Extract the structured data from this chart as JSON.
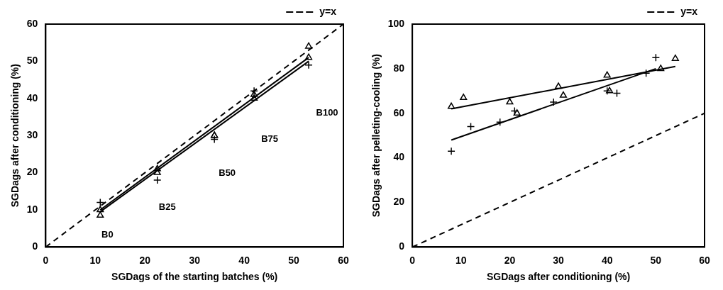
{
  "chart_data": [
    {
      "type": "scatter",
      "xlabel": "SGDags of the starting batches (%)",
      "ylabel": "SGDags after conditioning (%)",
      "xlim": [
        0,
        60
      ],
      "ylim": [
        0,
        60
      ],
      "xticks": [
        0,
        10,
        20,
        30,
        40,
        50,
        60
      ],
      "yticks": [
        0,
        10,
        20,
        30,
        40,
        50,
        60
      ],
      "grid": false,
      "legend": "top right",
      "series": [
        {
          "color": "#000000",
          "marker": "cross",
          "x": [
            11,
            22.5,
            34,
            42,
            53
          ],
          "values": [
            12,
            18,
            29,
            42,
            49
          ]
        },
        {
          "color": "#000000",
          "marker": "triangle",
          "x": [
            11,
            22.5,
            34,
            42,
            53
          ],
          "values": [
            10,
            20,
            30,
            41,
            54
          ]
        },
        {
          "color": "#000000",
          "marker": "triangle",
          "x": [
            11,
            22.5,
            34,
            42,
            53
          ],
          "values": [
            8.5,
            21,
            30,
            40,
            51
          ]
        },
        {
          "type": "line",
          "color": "#000000",
          "marker": "none",
          "x": [
            11,
            53
          ],
          "values": [
            10,
            51
          ]
        },
        {
          "type": "line",
          "color": "#000000",
          "marker": "none",
          "x": [
            11,
            53
          ],
          "values": [
            9.5,
            50
          ]
        },
        {
          "type": "line",
          "name": "y=x",
          "color": "#000000",
          "marker": "none",
          "line_style": "dashed",
          "x": [
            0,
            60
          ],
          "values": [
            0,
            60
          ]
        }
      ],
      "annotations": [
        "B0",
        "B25",
        "B50",
        "B75",
        "B100"
      ]
    },
    {
      "type": "scatter",
      "xlabel": "SGDags after conditioning (%)",
      "ylabel": "SGDags after pelleting-cooling (%)",
      "xlim": [
        0,
        60
      ],
      "ylim": [
        0,
        100
      ],
      "xticks": [
        0,
        10,
        20,
        30,
        40,
        50,
        60
      ],
      "yticks": [
        0,
        20,
        40,
        60,
        80,
        100
      ],
      "grid": false,
      "legend": "top right",
      "series": [
        {
          "color": "#000000",
          "marker": "cross",
          "x": [
            8,
            12,
            18,
            21,
            29,
            40,
            42,
            48,
            50
          ],
          "values": [
            43,
            54,
            56,
            61,
            65,
            70,
            69,
            78,
            85
          ]
        },
        {
          "color": "#000000",
          "marker": "triangle",
          "x": [
            8,
            10.5,
            20,
            21.5,
            30,
            31,
            40,
            40.5,
            51,
            54
          ],
          "values": [
            63,
            67,
            65,
            60,
            72,
            68,
            77,
            70,
            80,
            84.5
          ]
        },
        {
          "type": "line",
          "color": "#000000",
          "marker": "none",
          "x": [
            8,
            54
          ],
          "values": [
            62,
            81
          ]
        },
        {
          "type": "line",
          "color": "#000000",
          "marker": "none",
          "x": [
            8,
            50
          ],
          "values": [
            48,
            80
          ]
        },
        {
          "type": "line",
          "name": "y=x",
          "color": "#000000",
          "marker": "none",
          "line_style": "dashed",
          "x": [
            0,
            60
          ],
          "values": [
            0,
            60
          ]
        }
      ]
    }
  ]
}
